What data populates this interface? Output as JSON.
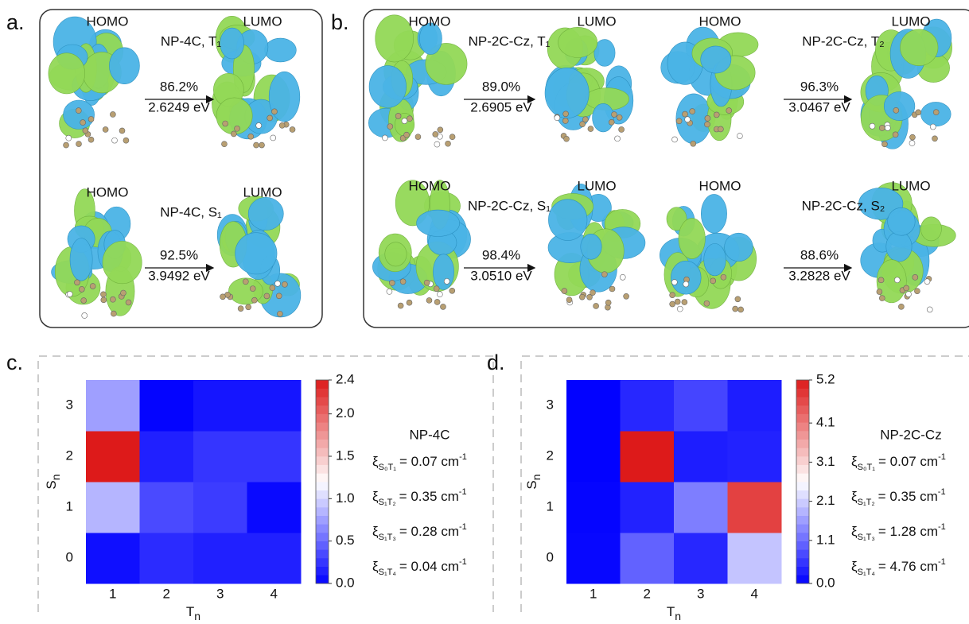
{
  "panels": {
    "a": {
      "label": "a.",
      "transitions": [
        {
          "homo": "HOMO",
          "lumo": "LUMO",
          "state": "NP-4C, T₁",
          "percent": "86.2%",
          "energy": "2.6249 eV"
        },
        {
          "homo": "HOMO",
          "lumo": "LUMO",
          "state": "NP-4C, S₁",
          "percent": "92.5%",
          "energy": "3.9492 eV"
        }
      ]
    },
    "b": {
      "label": "b.",
      "transitions": [
        {
          "homo": "HOMO",
          "lumo": "LUMO",
          "state": "NP-2C-Cz, T₁",
          "percent": "89.0%",
          "energy": "2.6905 eV"
        },
        {
          "homo": "HOMO",
          "lumo": "LUMO",
          "state": "NP-2C-Cz, T₂",
          "percent": "96.3%",
          "energy": "3.0467 eV"
        },
        {
          "homo": "HOMO",
          "lumo": "LUMO",
          "state": "NP-2C-Cz, S₁",
          "percent": "98.4%",
          "energy": "3.0510 eV"
        },
        {
          "homo": "HOMO",
          "lumo": "LUMO",
          "state": "NP-2C-Cz, S₂",
          "percent": "88.6%",
          "energy": "3.2828 eV"
        }
      ]
    }
  },
  "chart_data": [
    {
      "type": "heatmap",
      "panel_label": "c.",
      "title": "NP-4C",
      "xlabel": "T",
      "xlabel_sub": "n",
      "ylabel": "S",
      "ylabel_sub": "n",
      "x": [
        "1",
        "2",
        "3",
        "4"
      ],
      "y": [
        "0",
        "1",
        "2",
        "3"
      ],
      "values": [
        [
          0.07,
          0.2,
          0.15,
          0.15
        ],
        [
          0.85,
          0.35,
          0.28,
          0.04
        ],
        [
          2.4,
          0.15,
          0.25,
          0.25
        ],
        [
          0.75,
          0.02,
          0.1,
          0.1
        ]
      ],
      "vlim": [
        0,
        2.4
      ],
      "colormap": [
        "#0000ff",
        "#ffffff",
        "#dd1a1a"
      ],
      "cticks": [
        {
          "value": 0,
          "label": "0.0"
        },
        0.5,
        {
          "value": 1,
          "label": "1.0"
        },
        1.5,
        {
          "value": 2,
          "label": "2.0"
        },
        2.4
      ],
      "annotations": [
        {
          "symbol": "ξ",
          "sub": "S₀T₁",
          "text": "= 0.07 cm",
          "sup": "-1"
        },
        {
          "symbol": "ξ",
          "sub": "S₁T₂",
          "text": "= 0.35 cm",
          "sup": "-1"
        },
        {
          "symbol": "ξ",
          "sub": "S₁T₃",
          "text": "= 0.28 cm",
          "sup": "-1"
        },
        {
          "symbol": "ξ",
          "sub": "S₁T₄",
          "text": "= 0.04 cm",
          "sup": "-1"
        }
      ]
    },
    {
      "type": "heatmap",
      "panel_label": "d.",
      "title": "NP-2C-Cz",
      "xlabel": "T",
      "xlabel_sub": "n",
      "ylabel": "S",
      "ylabel_sub": "n",
      "x": [
        "1",
        "2",
        "3",
        "4"
      ],
      "y": [
        "0",
        "1",
        "2",
        "3"
      ],
      "values": [
        [
          0.07,
          1.0,
          0.4,
          2.0
        ],
        [
          0.05,
          0.35,
          1.28,
          4.76
        ],
        [
          0.02,
          5.2,
          0.3,
          0.35
        ],
        [
          0.02,
          0.4,
          0.7,
          0.3
        ]
      ],
      "vlim": [
        0,
        5.2
      ],
      "colormap": [
        "#0000ff",
        "#ffffff",
        "#dd1a1a"
      ],
      "cticks": [
        {
          "value": 0,
          "label": "0.0"
        },
        1.1,
        2.1,
        3.1,
        4.1,
        5.2
      ],
      "annotations": [
        {
          "symbol": "ξ",
          "sub": "S₀T₁",
          "text": "= 0.07 cm",
          "sup": "-1"
        },
        {
          "symbol": "ξ",
          "sub": "S₁T₂",
          "text": "= 0.35 cm",
          "sup": "-1"
        },
        {
          "symbol": "ξ",
          "sub": "S₁T₃",
          "text": "= 1.28 cm",
          "sup": "-1"
        },
        {
          "symbol": "ξ",
          "sub": "S₁T₄",
          "text": "= 4.76 cm",
          "sup": "-1"
        }
      ]
    }
  ]
}
